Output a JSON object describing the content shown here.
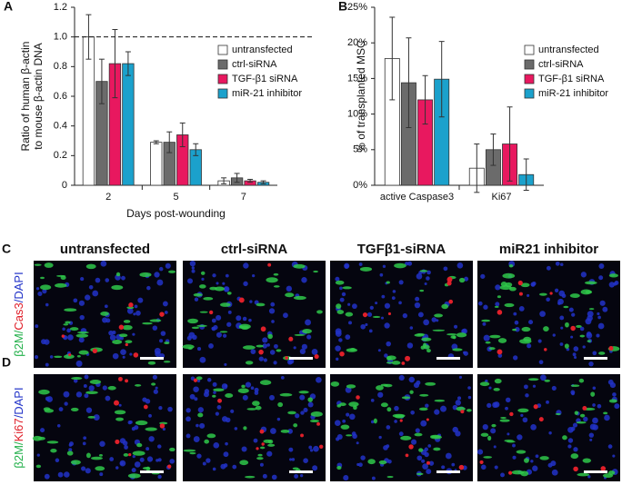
{
  "chart_data": [
    {
      "type": "bar",
      "panel": "A",
      "ylabel": [
        "Ratio of human β-actin",
        "to mouse β-actin DNA"
      ],
      "xlabel": "Days post-wounding",
      "categories": [
        "2",
        "5",
        "7"
      ],
      "ylim": [
        0,
        1.2
      ],
      "yticks": [
        0,
        0.2,
        0.4,
        0.6,
        0.8,
        {
          "value": 1,
          "label": "1.0"
        },
        1.2
      ],
      "reference_line": 1,
      "series": [
        {
          "name": "untransfected",
          "color": "#ffffff",
          "values": [
            1.0,
            0.29,
            0.03
          ],
          "errors": [
            0.15,
            0.01,
            0.02
          ]
        },
        {
          "name": "ctrl-siRNA",
          "color": "#6b6b6b",
          "values": [
            0.7,
            0.29,
            0.05
          ],
          "errors": [
            0.15,
            0.07,
            0.03
          ]
        },
        {
          "name": "TGF-β1 siRNA",
          "color": "#e8185f",
          "values": [
            0.82,
            0.34,
            0.03
          ],
          "errors": [
            0.23,
            0.08,
            0.01
          ]
        },
        {
          "name": "miR-21 inhibitor",
          "color": "#1ba1cc",
          "values": [
            0.82,
            0.24,
            0.02
          ],
          "errors": [
            0.08,
            0.04,
            0.01
          ]
        }
      ]
    },
    {
      "type": "bar",
      "panel": "B",
      "ylabel": [
        "% of transplanted MSC"
      ],
      "categories": [
        "active Caspase3",
        "Ki67"
      ],
      "ylim": [
        0,
        25
      ],
      "yticks": [
        {
          "value": 0,
          "label": "0%"
        },
        {
          "value": 5,
          "label": "5%"
        },
        {
          "value": 10,
          "label": "10%"
        },
        {
          "value": 15,
          "label": "15%"
        },
        {
          "value": 20,
          "label": "20%"
        },
        {
          "value": 25,
          "label": "25%"
        }
      ],
      "series": [
        {
          "name": "untransfected",
          "color": "#ffffff",
          "values": [
            17.8,
            2.4
          ],
          "errors": [
            5.8,
            3.4
          ]
        },
        {
          "name": "ctrl-siRNA",
          "color": "#6b6b6b",
          "values": [
            14.4,
            5.0
          ],
          "errors": [
            6.3,
            2.2
          ]
        },
        {
          "name": "TGF-β1 siRNA",
          "color": "#e8185f",
          "values": [
            12.0,
            5.8
          ],
          "errors": [
            3.4,
            5.2
          ]
        },
        {
          "name": "miR-21 inhibitor",
          "color": "#1ba1cc",
          "values": [
            14.9,
            1.5
          ],
          "errors": [
            5.3,
            2.2
          ]
        }
      ]
    }
  ],
  "micrographs": {
    "columns": [
      "untransfected",
      "ctrl-siRNA",
      "TGFβ1-siRNA",
      "miR21 inhibitor"
    ],
    "rows": [
      {
        "panel": "C",
        "label": [
          {
            "text": "β2M/",
            "color": "#22b04a"
          },
          {
            "text": "Cas3",
            "color": "#e0202a"
          },
          {
            "text": "/DAPI",
            "color": "#2233c8"
          }
        ]
      },
      {
        "panel": "D",
        "label": [
          {
            "text": "β2M/",
            "color": "#22b04a"
          },
          {
            "text": "Ki67",
            "color": "#e0202a"
          },
          {
            "text": "/DAPI",
            "color": "#2233c8"
          }
        ]
      }
    ]
  }
}
